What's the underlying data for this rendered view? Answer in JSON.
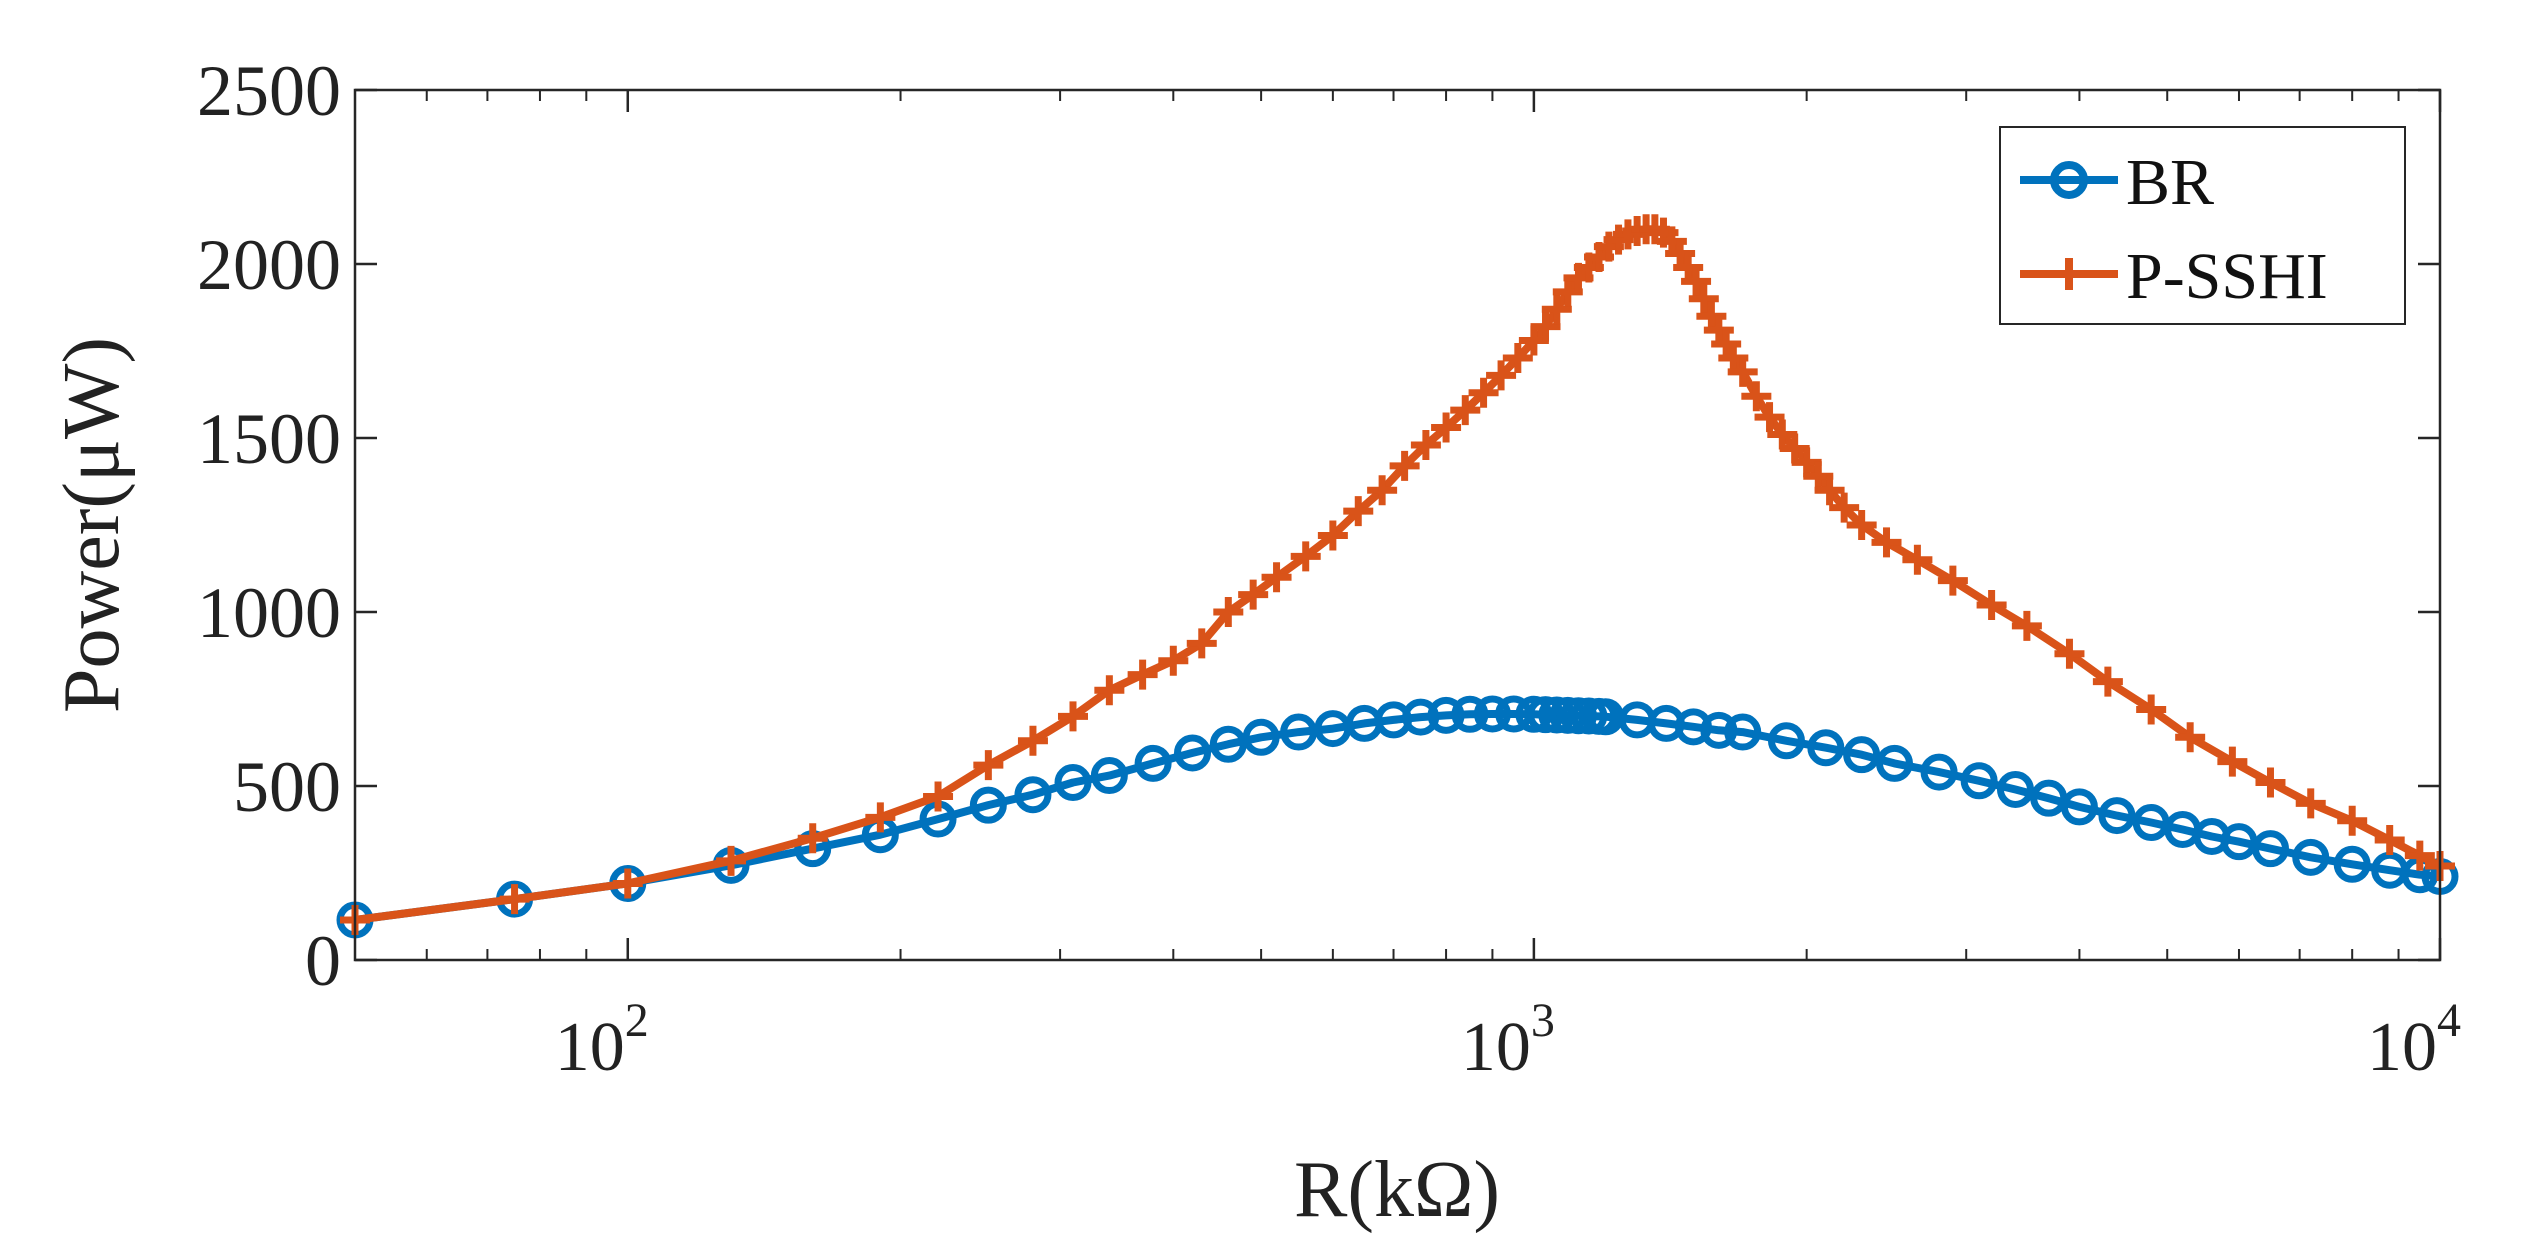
{
  "chart_data": {
    "type": "line",
    "title": "",
    "xlabel": "R(kΩ)",
    "ylabel": "Power(μW)",
    "xscale": "log",
    "xlim": [
      50,
      10000
    ],
    "ylim": [
      0,
      2500
    ],
    "grid": false,
    "legend_position": "top-right",
    "x_ticks": [
      {
        "value": 100,
        "base": "10",
        "exp": "2"
      },
      {
        "value": 1000,
        "base": "10",
        "exp": "3"
      },
      {
        "value": 10000,
        "base": "10",
        "exp": "4"
      }
    ],
    "y_ticks": [
      {
        "value": 0,
        "label": "0"
      },
      {
        "value": 500,
        "label": "500"
      },
      {
        "value": 1000,
        "label": "1000"
      },
      {
        "value": 1500,
        "label": "1500"
      },
      {
        "value": 2000,
        "label": "2000"
      },
      {
        "value": 2500,
        "label": "2500"
      }
    ],
    "series": [
      {
        "name": "BR",
        "color": "#0072BD",
        "marker": "circle",
        "points": [
          [
            50,
            115
          ],
          [
            75,
            175
          ],
          [
            100,
            220
          ],
          [
            130,
            272
          ],
          [
            160,
            320
          ],
          [
            190,
            360
          ],
          [
            220,
            405
          ],
          [
            250,
            445
          ],
          [
            280,
            475
          ],
          [
            310,
            510
          ],
          [
            340,
            530
          ],
          [
            380,
            565
          ],
          [
            420,
            595
          ],
          [
            460,
            620
          ],
          [
            500,
            640
          ],
          [
            550,
            655
          ],
          [
            600,
            665
          ],
          [
            650,
            680
          ],
          [
            700,
            690
          ],
          [
            750,
            698
          ],
          [
            800,
            703
          ],
          [
            850,
            706
          ],
          [
            900,
            707
          ],
          [
            950,
            707
          ],
          [
            1000,
            706
          ],
          [
            1030,
            705
          ],
          [
            1060,
            704
          ],
          [
            1090,
            703
          ],
          [
            1120,
            702
          ],
          [
            1150,
            701
          ],
          [
            1180,
            700
          ],
          [
            1200,
            699
          ],
          [
            1300,
            690
          ],
          [
            1400,
            680
          ],
          [
            1500,
            670
          ],
          [
            1600,
            660
          ],
          [
            1700,
            655
          ],
          [
            1900,
            630
          ],
          [
            2100,
            610
          ],
          [
            2300,
            590
          ],
          [
            2500,
            565
          ],
          [
            2800,
            540
          ],
          [
            3100,
            515
          ],
          [
            3400,
            490
          ],
          [
            3700,
            465
          ],
          [
            4000,
            440
          ],
          [
            4400,
            415
          ],
          [
            4800,
            395
          ],
          [
            5200,
            375
          ],
          [
            5600,
            355
          ],
          [
            6000,
            340
          ],
          [
            6500,
            320
          ],
          [
            7200,
            295
          ],
          [
            8000,
            275
          ],
          [
            8800,
            258
          ],
          [
            9500,
            245
          ],
          [
            10000,
            240
          ]
        ]
      },
      {
        "name": "P-SSHI",
        "color": "#D95319",
        "marker": "plus",
        "points": [
          [
            50,
            115
          ],
          [
            75,
            175
          ],
          [
            100,
            220
          ],
          [
            130,
            285
          ],
          [
            160,
            350
          ],
          [
            190,
            410
          ],
          [
            220,
            470
          ],
          [
            250,
            560
          ],
          [
            280,
            630
          ],
          [
            310,
            700
          ],
          [
            340,
            775
          ],
          [
            370,
            820
          ],
          [
            400,
            860
          ],
          [
            430,
            910
          ],
          [
            460,
            1000
          ],
          [
            490,
            1050
          ],
          [
            520,
            1100
          ],
          [
            560,
            1160
          ],
          [
            600,
            1220
          ],
          [
            640,
            1290
          ],
          [
            680,
            1350
          ],
          [
            720,
            1420
          ],
          [
            760,
            1480
          ],
          [
            800,
            1530
          ],
          [
            840,
            1580
          ],
          [
            880,
            1630
          ],
          [
            920,
            1680
          ],
          [
            960,
            1730
          ],
          [
            1000,
            1780
          ],
          [
            1030,
            1820
          ],
          [
            1060,
            1870
          ],
          [
            1090,
            1920
          ],
          [
            1120,
            1960
          ],
          [
            1150,
            1990
          ],
          [
            1180,
            2020
          ],
          [
            1210,
            2050
          ],
          [
            1240,
            2070
          ],
          [
            1270,
            2085
          ],
          [
            1300,
            2095
          ],
          [
            1330,
            2100
          ],
          [
            1360,
            2100
          ],
          [
            1390,
            2090
          ],
          [
            1420,
            2065
          ],
          [
            1450,
            2030
          ],
          [
            1480,
            1990
          ],
          [
            1510,
            1950
          ],
          [
            1540,
            1900
          ],
          [
            1570,
            1850
          ],
          [
            1600,
            1810
          ],
          [
            1630,
            1770
          ],
          [
            1660,
            1730
          ],
          [
            1700,
            1690
          ],
          [
            1760,
            1620
          ],
          [
            1820,
            1560
          ],
          [
            1880,
            1510
          ],
          [
            1940,
            1470
          ],
          [
            2000,
            1430
          ],
          [
            2060,
            1390
          ],
          [
            2120,
            1350
          ],
          [
            2200,
            1300
          ],
          [
            2300,
            1250
          ],
          [
            2450,
            1200
          ],
          [
            2650,
            1150
          ],
          [
            2900,
            1090
          ],
          [
            3200,
            1020
          ],
          [
            3500,
            960
          ],
          [
            3900,
            880
          ],
          [
            4300,
            800
          ],
          [
            4800,
            720
          ],
          [
            5300,
            640
          ],
          [
            5900,
            570
          ],
          [
            6500,
            510
          ],
          [
            7200,
            450
          ],
          [
            8000,
            400
          ],
          [
            8800,
            345
          ],
          [
            9500,
            300
          ],
          [
            10000,
            270
          ]
        ]
      }
    ]
  }
}
